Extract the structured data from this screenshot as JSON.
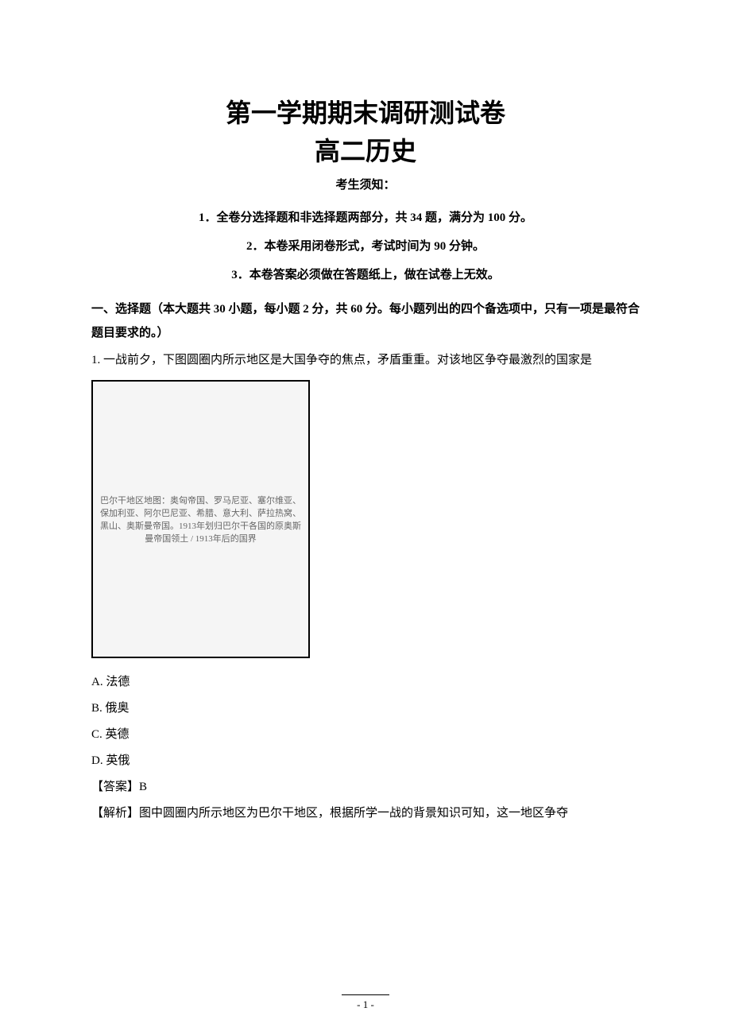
{
  "header": {
    "title_line1": "第一学期期末调研测试卷",
    "title_line2": "高二历史",
    "notice_label": "考生须知："
  },
  "instructions": [
    "1．全卷分选择题和非选择题两部分，共 34 题，满分为 100 分。",
    "2．本卷采用闭卷形式，考试时间为 90 分钟。",
    "3．本卷答案必须做在答题纸上，做在试卷上无效。"
  ],
  "section_header": "一、选择题（本大题共 30 小题，每小题 2 分，共 60 分。每小题列出的四个备选项中，只有一项是最符合题目要求的。）",
  "question": {
    "number": "1.",
    "text": "一战前夕，下图圆圈内所示地区是大国争夺的焦点，矛盾重重。对该地区争夺最激烈的国家是",
    "map_description": "巴尔干地区地图：奥匈帝国、罗马尼亚、塞尔维亚、保加利亚、阿尔巴尼亚、希腊、意大利、萨拉热窝、黑山、奥斯曼帝国。1913年划归巴尔干各国的原奥斯曼帝国领土 / 1913年后的国界"
  },
  "options": [
    {
      "label": "A.",
      "text": "法德"
    },
    {
      "label": "B.",
      "text": "俄奥"
    },
    {
      "label": "C.",
      "text": "英德"
    },
    {
      "label": "D.",
      "text": "英俄"
    }
  ],
  "answer": {
    "label": "【答案】",
    "value": "B"
  },
  "analysis": {
    "label": "【解析】",
    "text": "图中圆圈内所示地区为巴尔干地区，根据所学一战的背景知识可知，这一地区争夺"
  },
  "page_number": "- 1 -",
  "colors": {
    "background": "#ffffff",
    "text": "#000000",
    "border": "#000000",
    "map_bg": "#f5f5f5",
    "map_text": "#666666"
  },
  "fonts": {
    "title_size": 32,
    "body_size": 15,
    "pagenum_size": 13
  }
}
